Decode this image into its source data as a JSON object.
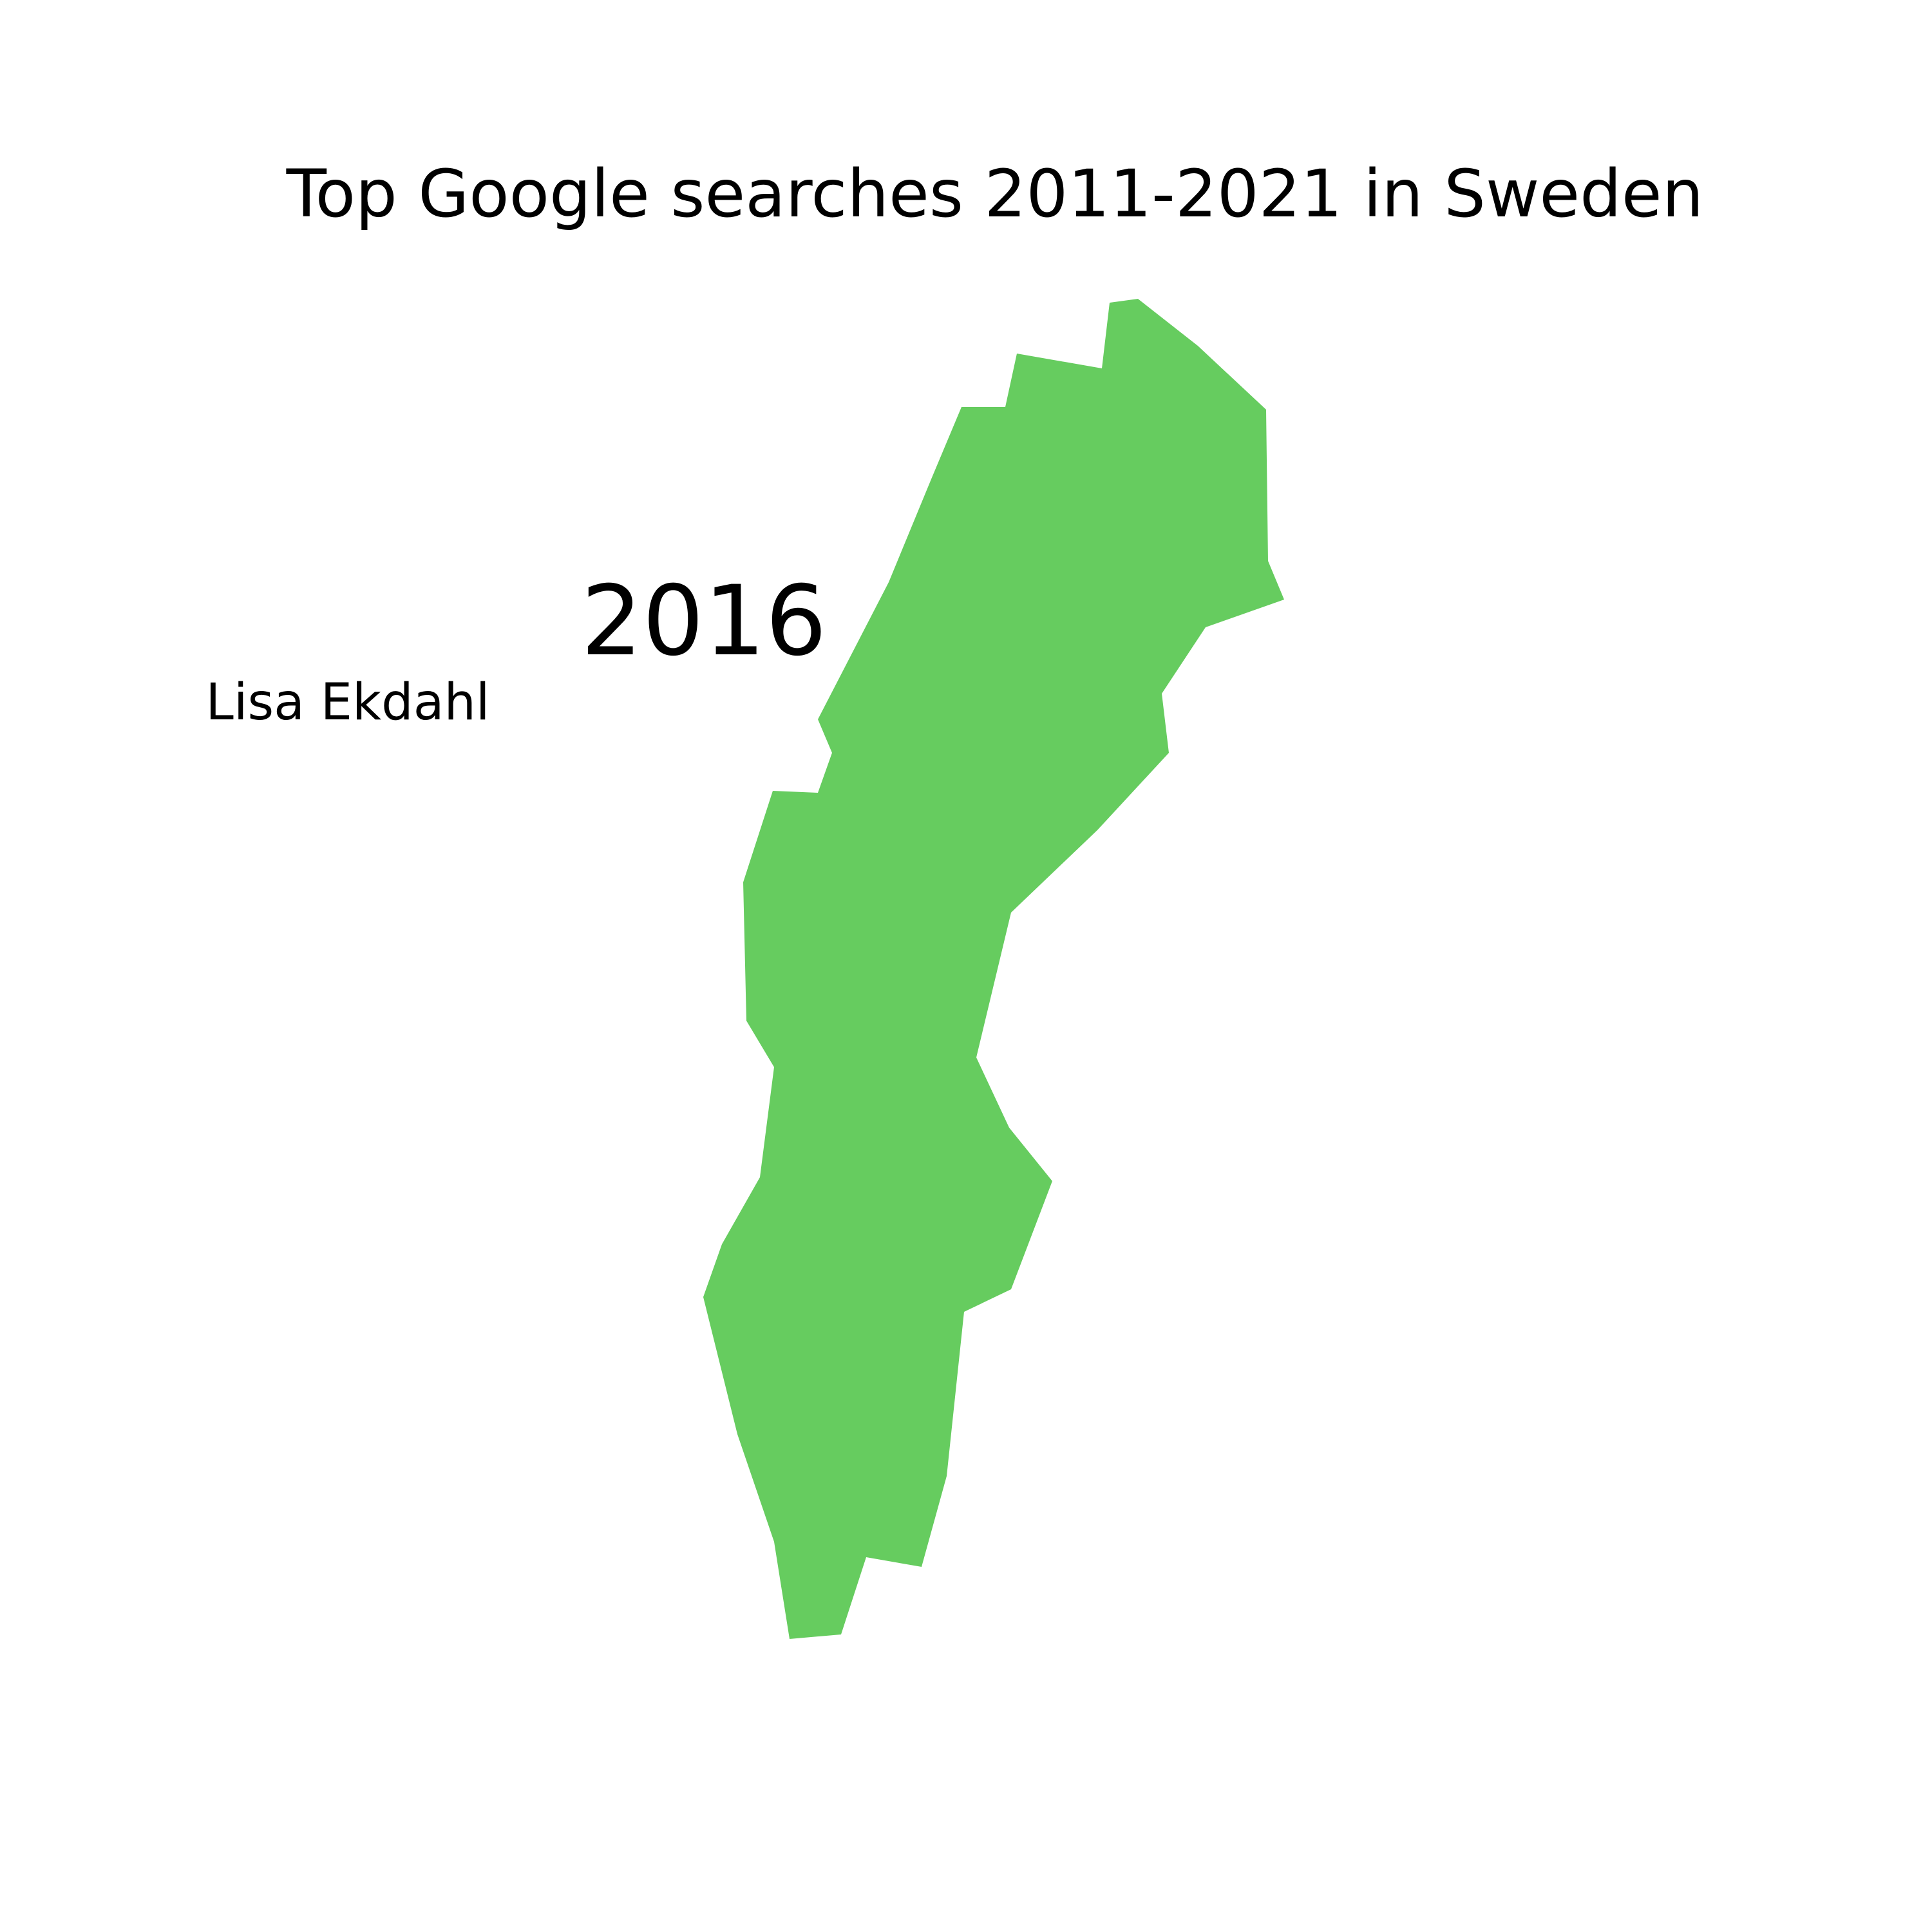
{
  "title": "Top Google searches 2011-2021 in Sweden",
  "year": "2016",
  "top_search": "Lisa Ekdahl",
  "country": {
    "name": "Sweden",
    "fill_color": "#66cc5f"
  }
}
